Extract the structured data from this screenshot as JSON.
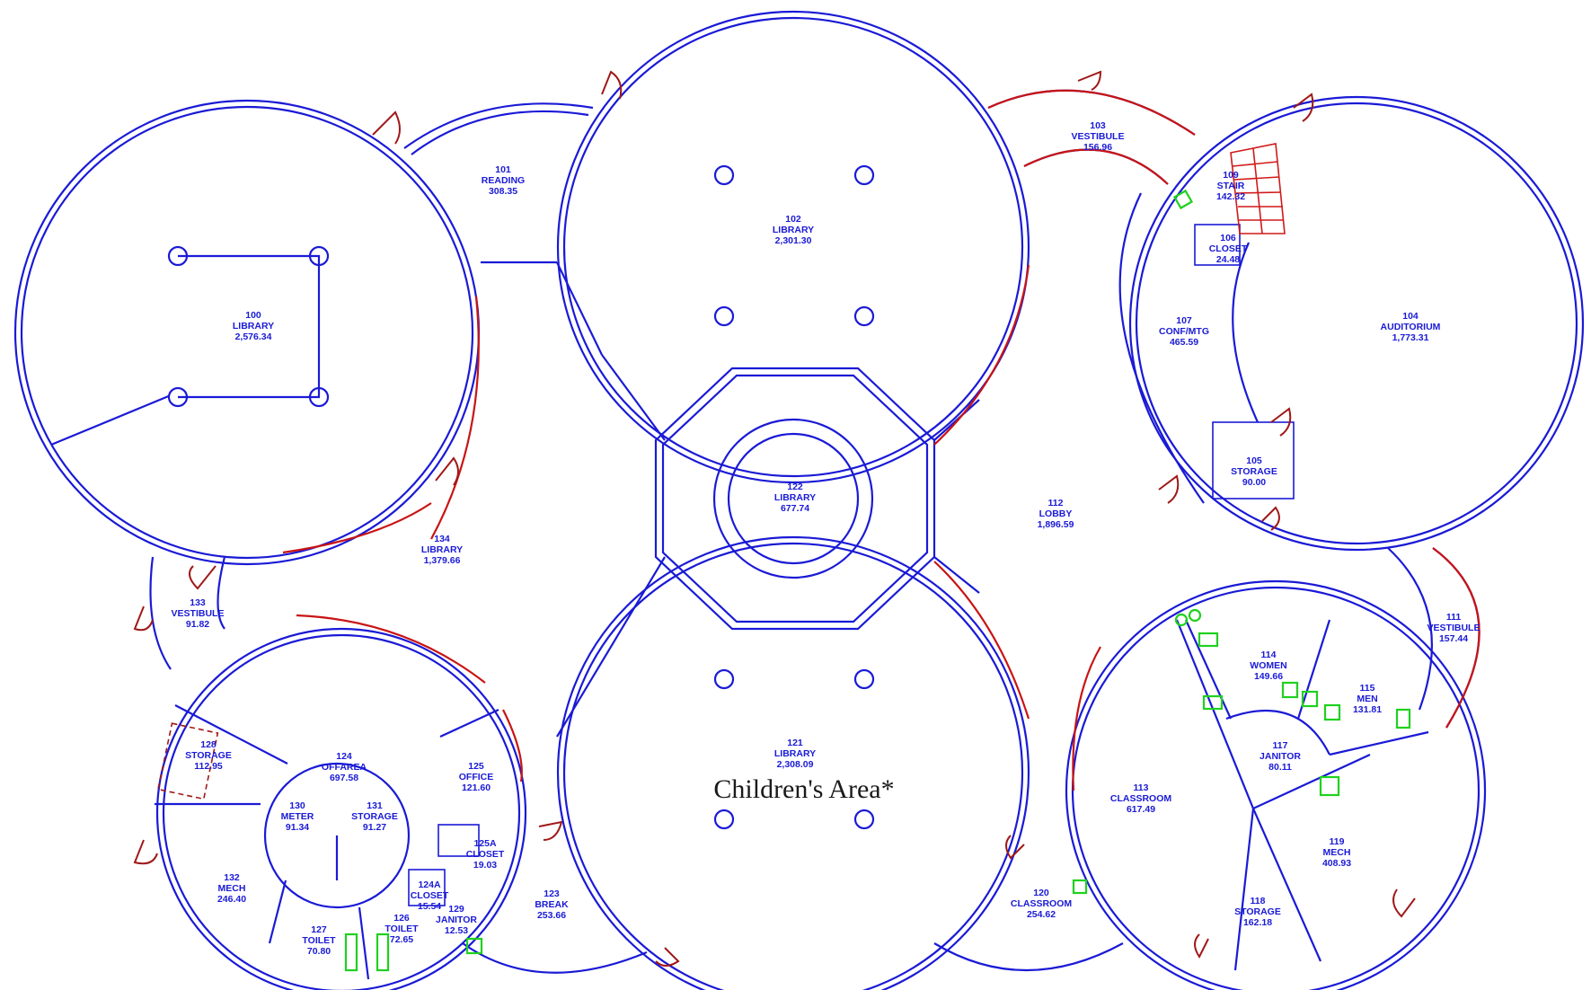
{
  "plan": {
    "overlay_label": "Children's Area*",
    "rooms": [
      {
        "id": "100",
        "num": "100",
        "name": "LIBRARY",
        "area": "2,576.34"
      },
      {
        "id": "101",
        "num": "101",
        "name": "READING",
        "area": "308.35"
      },
      {
        "id": "102",
        "num": "102",
        "name": "LIBRARY",
        "area": "2,301.30"
      },
      {
        "id": "103",
        "num": "103",
        "name": "VESTIBULE",
        "area": "156.96"
      },
      {
        "id": "104",
        "num": "104",
        "name": "AUDITORIUM",
        "area": "1,773.31"
      },
      {
        "id": "105",
        "num": "105",
        "name": "STORAGE",
        "area": "90.00"
      },
      {
        "id": "106",
        "num": "106",
        "name": "CLOSET",
        "area": "24.48"
      },
      {
        "id": "107",
        "num": "107",
        "name": "CONF/MTG",
        "area": "465.59"
      },
      {
        "id": "109",
        "num": "109",
        "name": "STAIR",
        "area": "142.32"
      },
      {
        "id": "111",
        "num": "111",
        "name": "VESTIBULE",
        "area": "157.44"
      },
      {
        "id": "112",
        "num": "112",
        "name": "LOBBY",
        "area": "1,896.59"
      },
      {
        "id": "113",
        "num": "113",
        "name": "CLASSROOM",
        "area": "617.49"
      },
      {
        "id": "114",
        "num": "114",
        "name": "WOMEN",
        "area": "149.66"
      },
      {
        "id": "115",
        "num": "115",
        "name": "MEN",
        "area": "131.81"
      },
      {
        "id": "117",
        "num": "117",
        "name": "JANITOR",
        "area": "80.11"
      },
      {
        "id": "118",
        "num": "118",
        "name": "STORAGE",
        "area": "162.18"
      },
      {
        "id": "119",
        "num": "119",
        "name": "MECH",
        "area": "408.93"
      },
      {
        "id": "120",
        "num": "120",
        "name": "CLASSROOM",
        "area": "254.62"
      },
      {
        "id": "121",
        "num": "121",
        "name": "LIBRARY",
        "area": "2,308.09"
      },
      {
        "id": "122",
        "num": "122",
        "name": "LIBRARY",
        "area": "677.74"
      },
      {
        "id": "123",
        "num": "123",
        "name": "BREAK",
        "area": "253.66"
      },
      {
        "id": "124",
        "num": "124",
        "name": "OFFAREA",
        "area": "697.58"
      },
      {
        "id": "124a",
        "num": "124A",
        "name": "CLOSET",
        "area": "15.54"
      },
      {
        "id": "125",
        "num": "125",
        "name": "OFFICE",
        "area": "121.60"
      },
      {
        "id": "125a",
        "num": "125A",
        "name": "CLOSET",
        "area": "19.03"
      },
      {
        "id": "126",
        "num": "126",
        "name": "TOILET",
        "area": "72.65"
      },
      {
        "id": "127",
        "num": "127",
        "name": "TOILET",
        "area": "70.80"
      },
      {
        "id": "128",
        "num": "128",
        "name": "STORAGE",
        "area": "112.95"
      },
      {
        "id": "129",
        "num": "129",
        "name": "JANITOR",
        "area": "12.53"
      },
      {
        "id": "130",
        "num": "130",
        "name": "METER",
        "area": "91.34"
      },
      {
        "id": "131",
        "num": "131",
        "name": "STORAGE",
        "area": "91.27"
      },
      {
        "id": "132",
        "num": "132",
        "name": "MECH",
        "area": "246.40"
      },
      {
        "id": "133",
        "num": "133",
        "name": "VESTIBULE",
        "area": "91.82"
      },
      {
        "id": "134",
        "num": "134",
        "name": "LIBRARY",
        "area": "1,379.66"
      }
    ],
    "colors": {
      "walls": "#1a1ad6",
      "windows": "#c81414",
      "doors": "#a01818",
      "fixtures": "#1fd11f",
      "overlay_text": "#1a1a1a"
    }
  }
}
